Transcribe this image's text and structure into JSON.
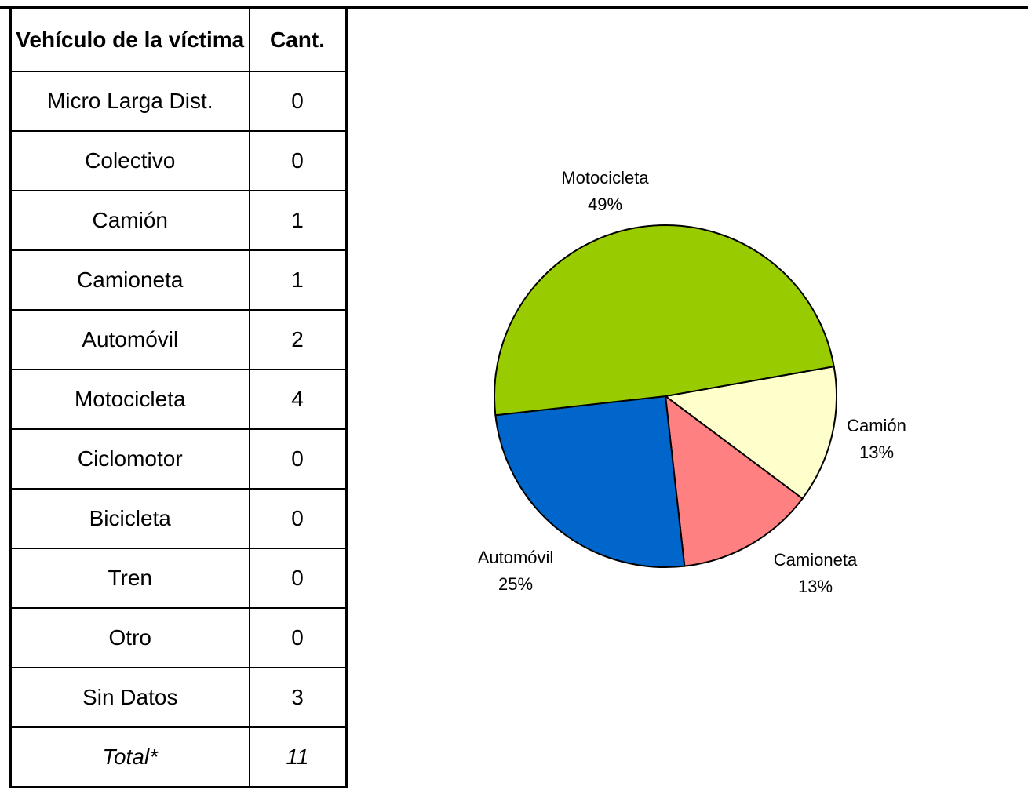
{
  "table": {
    "header": [
      "Vehículo de la víctima",
      "Cant."
    ],
    "rows": [
      [
        "Micro Larga Dist.",
        0
      ],
      [
        "Colectivo",
        0
      ],
      [
        "Camión",
        1
      ],
      [
        "Camioneta",
        1
      ],
      [
        "Automóvil",
        2
      ],
      [
        "Motocicleta",
        4
      ],
      [
        "Ciclomotor",
        0
      ],
      [
        "Bicicleta",
        0
      ],
      [
        "Tren",
        0
      ],
      [
        "Otro",
        0
      ],
      [
        "Sin Datos",
        3
      ],
      [
        "Total*",
        11
      ]
    ]
  },
  "chart_data": {
    "type": "pie",
    "categories": [
      "Camión",
      "Camioneta",
      "Automóvil",
      "Motocicleta"
    ],
    "values": [
      13,
      13,
      25,
      49
    ],
    "value_labels": [
      "13%",
      "13%",
      "25%",
      "49%"
    ],
    "colors": [
      "#ffffcc",
      "#ff8080",
      "#0066cc",
      "#99cc00"
    ]
  }
}
